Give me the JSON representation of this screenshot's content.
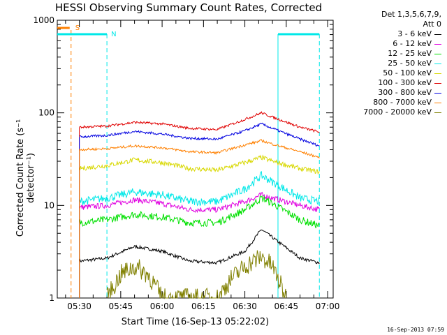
{
  "chart_data": {
    "type": "line",
    "title": "HESSI Observing Summary Count Rates, Corrected",
    "xlabel": "Start Time (16-Sep-13 05:22:02)",
    "ylabel": "Corrected Count Rate (s⁻¹ detector⁻¹)",
    "footnote": "16-Sep-2013 07:59",
    "ylog": true,
    "ylim": [
      1,
      1000
    ],
    "xlim": [
      "05:22",
      "07:02"
    ],
    "x_ticks": [
      "05:30",
      "05:45",
      "06:00",
      "06:15",
      "06:30",
      "06:45",
      "07:00"
    ],
    "y_ticks": [
      "1",
      "10",
      "100",
      "1000"
    ],
    "legend_header": [
      "Det 1,3,5,6,7,9,",
      "Att 0"
    ],
    "legend_position": "top-right outside plot",
    "series": [
      {
        "name": "3 - 6 keV",
        "color": "#000000",
        "x": [
          "05:30",
          "05:40",
          "05:50",
          "06:00",
          "06:10",
          "06:20",
          "06:30",
          "06:36",
          "06:40",
          "06:50",
          "06:57"
        ],
        "y": [
          2.5,
          2.7,
          3.6,
          3.2,
          2.5,
          2.4,
          3.2,
          5.5,
          4.5,
          2.7,
          2.4
        ]
      },
      {
        "name": "6 - 12 keV",
        "color": "#e000e0",
        "x": [
          "05:30",
          "05:40",
          "05:50",
          "06:00",
          "06:10",
          "06:20",
          "06:30",
          "06:36",
          "06:40",
          "06:50",
          "06:57"
        ],
        "y": [
          9.5,
          10,
          11.5,
          10.5,
          9,
          9,
          11,
          13,
          12,
          10,
          9
        ]
      },
      {
        "name": "12 - 25 keV",
        "color": "#00e000",
        "x": [
          "05:30",
          "05:40",
          "05:50",
          "06:00",
          "06:10",
          "06:20",
          "06:30",
          "06:36",
          "06:40",
          "06:50",
          "06:57"
        ],
        "y": [
          6.5,
          7,
          8,
          7.5,
          6.5,
          6.5,
          9,
          12,
          10.5,
          7,
          6
        ]
      },
      {
        "name": "25 - 50 keV",
        "color": "#00e8e8",
        "x": [
          "05:30",
          "05:40",
          "05:50",
          "06:00",
          "06:10",
          "06:20",
          "06:30",
          "06:36",
          "06:40",
          "06:50",
          "06:57"
        ],
        "y": [
          11,
          12,
          14,
          13,
          11,
          11,
          15,
          21,
          18,
          12,
          11
        ]
      },
      {
        "name": "50 - 100 keV",
        "color": "#d8d800",
        "x": [
          "05:30",
          "05:40",
          "05:50",
          "06:00",
          "06:10",
          "06:20",
          "06:30",
          "06:36",
          "06:40",
          "06:50",
          "06:57"
        ],
        "y": [
          25,
          27,
          31,
          29,
          25,
          24,
          29,
          33,
          30,
          25,
          23
        ]
      },
      {
        "name": "100 - 300 keV",
        "color": "#e00000",
        "x": [
          "05:30",
          "05:40",
          "05:50",
          "06:00",
          "06:10",
          "06:20",
          "06:30",
          "06:36",
          "06:40",
          "06:50",
          "06:57"
        ],
        "y": [
          70,
          72,
          79,
          76,
          68,
          66,
          85,
          100,
          90,
          70,
          62
        ]
      },
      {
        "name": "300 - 800 keV",
        "color": "#0000e0",
        "x": [
          "05:30",
          "05:40",
          "05:50",
          "06:00",
          "06:10",
          "06:20",
          "06:30",
          "06:36",
          "06:40",
          "06:50",
          "06:57"
        ],
        "y": [
          55,
          57,
          63,
          59,
          53,
          52,
          64,
          76,
          68,
          52,
          44
        ]
      },
      {
        "name": "800 - 7000 keV",
        "color": "#ff8000",
        "x": [
          "05:30",
          "05:40",
          "05:50",
          "06:00",
          "06:10",
          "06:20",
          "06:30",
          "06:36",
          "06:40",
          "06:50",
          "06:57"
        ],
        "y": [
          40,
          41,
          44,
          42,
          38,
          37,
          45,
          50,
          46,
          38,
          33
        ]
      },
      {
        "name": "7000 - 20000 keV",
        "color": "#808000",
        "x": [
          "05:40",
          "05:45",
          "05:50",
          "05:55",
          "06:00",
          "06:20",
          "06:25",
          "06:30",
          "06:36",
          "06:40",
          "06:45"
        ],
        "y": [
          1,
          1.8,
          2.2,
          1.8,
          1,
          1,
          1.6,
          2.2,
          2.8,
          2.2,
          1
        ]
      }
    ],
    "annotations": [
      {
        "label": "S",
        "color": "#ff8000",
        "x": "05:27"
      },
      {
        "label": "N",
        "color": "#00e8e8",
        "x": "05:40"
      }
    ],
    "markers": {
      "night_start": "05:40",
      "night_end": "06:42",
      "night_end2": "06:57"
    }
  }
}
